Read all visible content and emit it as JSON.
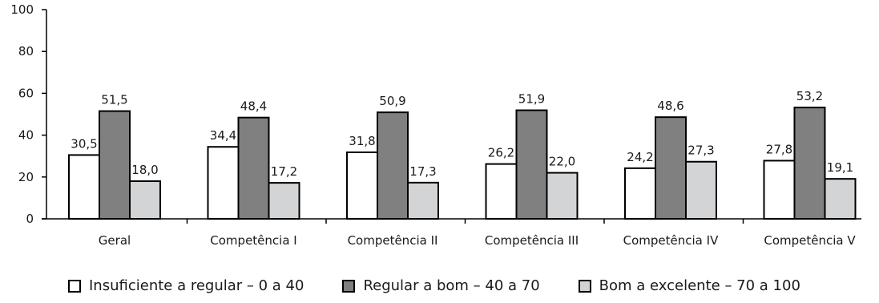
{
  "chart_data": {
    "type": "bar",
    "categories": [
      "Geral",
      "Competência I",
      "Competência II",
      "Competência III",
      "Competência IV",
      "Competência V"
    ],
    "series": [
      {
        "name": "Insuficiente a regular – 0 a 40",
        "color": "#ffffff",
        "values": [
          30.5,
          34.4,
          31.8,
          26.2,
          24.2,
          27.8
        ],
        "labels": [
          "30,5",
          "34,4",
          "31,8",
          "26,2",
          "24,2",
          "27,8"
        ]
      },
      {
        "name": "Regular a bom – 40 a 70",
        "color": "#808080",
        "values": [
          51.5,
          48.4,
          50.9,
          51.9,
          48.6,
          53.2
        ],
        "labels": [
          "51,5",
          "48,4",
          "50,9",
          "51,9",
          "48,6",
          "53,2"
        ]
      },
      {
        "name": "Bom a excelente – 70 a 100",
        "color": "#d3d4d6",
        "values": [
          18.0,
          17.2,
          17.3,
          22.0,
          27.3,
          19.1
        ],
        "labels": [
          "18,0",
          "17,2",
          "17,3",
          "22,0",
          "27,3",
          "19,1"
        ]
      }
    ],
    "ylim": [
      0,
      100
    ],
    "yticks": [
      0,
      20,
      40,
      60,
      80,
      100
    ],
    "grid": false,
    "legend": "bottom"
  }
}
